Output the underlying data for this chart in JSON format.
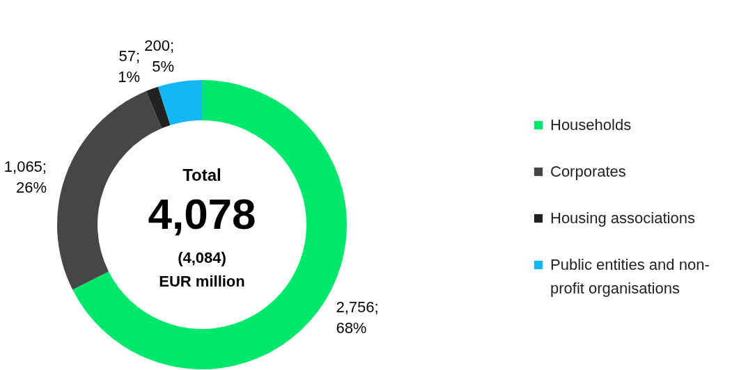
{
  "chart_data": {
    "type": "donut",
    "categories": [
      "Households",
      "Corporates",
      "Housing associations",
      "Public entities and non-profit organisations"
    ],
    "values": [
      2756,
      1065,
      57,
      200
    ],
    "colors": [
      "#00e86b",
      "#464646",
      "#222222",
      "#14b6f5"
    ],
    "value_labels": [
      "2,756; 68%",
      "1,065; 26%",
      "57; 1%",
      "200; 5%"
    ],
    "annotations": [
      "Total",
      "4,078",
      "(4,084)",
      "EUR million"
    ],
    "legend": "right"
  }
}
